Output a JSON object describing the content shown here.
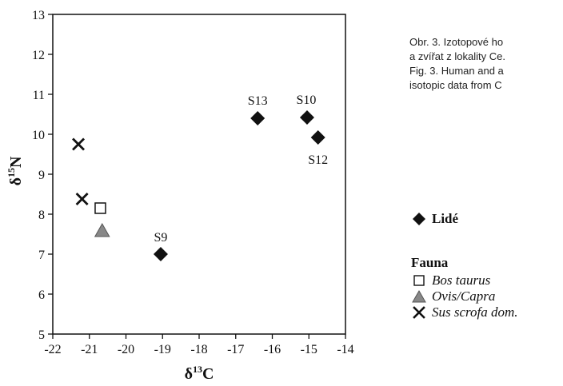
{
  "caption": {
    "lines": [
      "Obr. 3. Izotopové ho",
      "a zvířat z lokality Ce.",
      "Fig. 3. Human and a",
      "isotopic data from C"
    ]
  },
  "chart_data": {
    "type": "scatter",
    "xlabel": "δ13C",
    "ylabel": "δ15N",
    "xlim": [
      -22,
      -14
    ],
    "ylim": [
      5,
      13
    ],
    "xticks": [
      -22,
      -21,
      -20,
      -19,
      -18,
      -17,
      -16,
      -15,
      -14
    ],
    "yticks": [
      5,
      6,
      7,
      8,
      9,
      10,
      11,
      12,
      13
    ],
    "grid": false,
    "legend_position": "right",
    "series": [
      {
        "name": "Lidé",
        "marker": "diamond",
        "color": "#111111",
        "points": [
          {
            "x": -19.05,
            "y": 7.0,
            "label": "S9"
          },
          {
            "x": -16.4,
            "y": 10.4,
            "label": "S13"
          },
          {
            "x": -15.05,
            "y": 10.42,
            "label": "S10"
          },
          {
            "x": -14.75,
            "y": 9.92,
            "label": "S12"
          }
        ]
      },
      {
        "name": "Bos taurus",
        "marker": "square-open",
        "color": "#111111",
        "points": [
          {
            "x": -20.7,
            "y": 8.15
          }
        ]
      },
      {
        "name": "Ovis/Capra",
        "marker": "triangle",
        "color": "#888888",
        "points": [
          {
            "x": -20.65,
            "y": 7.58
          }
        ]
      },
      {
        "name": "Sus scrofa dom.",
        "marker": "cross",
        "color": "#111111",
        "points": [
          {
            "x": -21.3,
            "y": 9.75
          },
          {
            "x": -21.2,
            "y": 8.38
          }
        ]
      }
    ],
    "legend_group_title": "Fauna"
  }
}
